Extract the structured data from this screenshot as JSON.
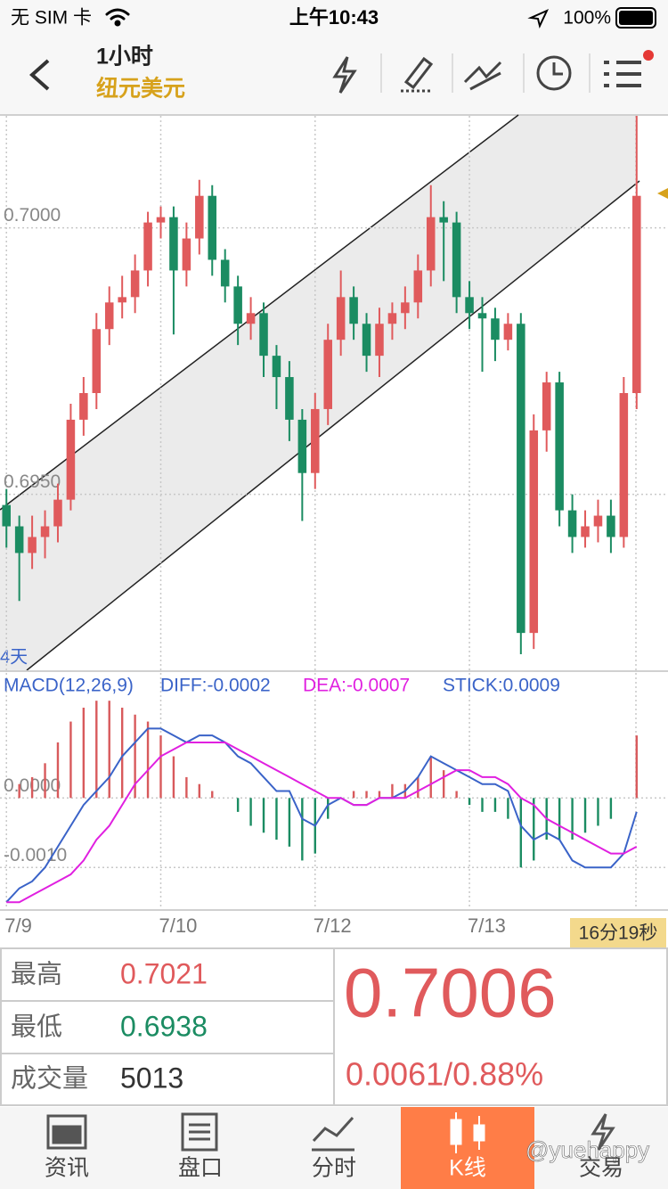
{
  "status_bar": {
    "carrier": "无 SIM 卡",
    "time": "上午10:43",
    "battery": "100%"
  },
  "header": {
    "period": "1小时",
    "symbol": "纽元美元"
  },
  "chart_data": [
    {
      "type": "candlestick",
      "period_label": "4天",
      "timer": "16分19秒",
      "up_color": "#e05a5c",
      "down_color": "#1b8c62",
      "categories": [
        "7/9",
        null,
        null,
        null,
        null,
        null,
        null,
        null,
        null,
        null,
        null,
        null,
        "7/10",
        null,
        null,
        null,
        null,
        null,
        null,
        null,
        null,
        null,
        null,
        null,
        "7/12",
        null,
        null,
        null,
        null,
        null,
        null,
        null,
        null,
        null,
        null,
        null,
        "7/13",
        null,
        null,
        null,
        null,
        null,
        null,
        null,
        null,
        null,
        null,
        null,
        null,
        null
      ],
      "open": [
        0.6948,
        0.6944,
        0.6939,
        0.6942,
        0.6944,
        0.6949,
        0.6964,
        0.6969,
        0.6981,
        0.6986,
        0.6987,
        0.6992,
        0.7001,
        0.7002,
        0.6992,
        0.6998,
        0.7006,
        0.6994,
        0.6989,
        0.6982,
        0.6984,
        0.6976,
        0.6972,
        0.6964,
        0.6954,
        0.6966,
        0.6979,
        0.6987,
        0.6982,
        0.6976,
        0.6982,
        0.6984,
        0.6986,
        0.6992,
        0.7002,
        0.7001,
        0.6987,
        0.6984,
        0.6983,
        0.6979,
        0.6982,
        0.6924,
        0.6962,
        0.6971,
        0.6947,
        0.6942,
        0.6944,
        0.6946,
        0.6942,
        0.6969
      ],
      "high": [
        0.6951,
        0.6946,
        0.6946,
        0.6947,
        0.6952,
        0.6967,
        0.6972,
        0.6984,
        0.6989,
        0.6991,
        0.6995,
        0.7003,
        0.7004,
        0.7004,
        0.7001,
        0.7009,
        0.7008,
        0.6996,
        0.6991,
        0.6987,
        0.6986,
        0.6978,
        0.6975,
        0.6966,
        0.6969,
        0.6982,
        0.6992,
        0.6989,
        0.6984,
        0.6985,
        0.6986,
        0.6989,
        0.6995,
        0.7008,
        0.7005,
        0.7003,
        0.699,
        0.6987,
        0.6985,
        0.6984,
        0.6984,
        0.6965,
        0.6973,
        0.6973,
        0.695,
        0.6947,
        0.6949,
        0.6949,
        0.6972,
        0.7021
      ],
      "low": [
        0.694,
        0.693,
        0.6936,
        0.6938,
        0.6941,
        0.6947,
        0.6961,
        0.6966,
        0.6978,
        0.6983,
        0.6984,
        0.6989,
        0.6998,
        0.698,
        0.6989,
        0.6995,
        0.6991,
        0.6986,
        0.6978,
        0.6979,
        0.6972,
        0.6966,
        0.696,
        0.6945,
        0.6951,
        0.6963,
        0.6976,
        0.6979,
        0.6973,
        0.6972,
        0.6979,
        0.6981,
        0.6983,
        0.6989,
        0.699,
        0.6984,
        0.6981,
        0.6973,
        0.6975,
        0.6977,
        0.692,
        0.6921,
        0.6958,
        0.6944,
        0.6939,
        0.694,
        0.6941,
        0.6939,
        0.694,
        0.6966
      ],
      "close": [
        0.6944,
        0.6939,
        0.6942,
        0.6944,
        0.6949,
        0.6964,
        0.6969,
        0.6981,
        0.6986,
        0.6987,
        0.6992,
        0.7001,
        0.7002,
        0.6992,
        0.6998,
        0.7006,
        0.6994,
        0.6989,
        0.6982,
        0.6984,
        0.6976,
        0.6972,
        0.6964,
        0.6954,
        0.6966,
        0.6979,
        0.6987,
        0.6982,
        0.6976,
        0.6982,
        0.6984,
        0.6986,
        0.6992,
        0.7002,
        0.7001,
        0.6987,
        0.6984,
        0.6983,
        0.6979,
        0.6982,
        0.6924,
        0.6962,
        0.6971,
        0.6947,
        0.6942,
        0.6944,
        0.6946,
        0.6942,
        0.6969,
        0.7006
      ],
      "ylim": [
        0.6917,
        0.7021
      ],
      "yticks": [
        {
          "value": 0.7,
          "label": "0.7000"
        },
        {
          "value": 0.695,
          "label": "0.6950"
        }
      ],
      "grid": true
    },
    {
      "type": "macd",
      "title": "MACD(12,26,9)",
      "title_color": "#3a63c8",
      "ylim": [
        -0.0016,
        0.0018
      ],
      "yticks": [
        {
          "value": 0,
          "label": "0.0000"
        },
        {
          "value": -0.001,
          "label": "-0.0010"
        }
      ],
      "series": [
        {
          "name": "DIFF:-0.0002",
          "color": "#3a63c8",
          "kind": "line",
          "values": [
            -0.0015,
            -0.0013,
            -0.0012,
            -0.001,
            -0.0007,
            -0.0004,
            -0.0001,
            0.0001,
            0.0003,
            0.0006,
            0.0008,
            0.001,
            0.001,
            0.0009,
            0.0008,
            0.0009,
            0.0009,
            0.0008,
            0.0006,
            0.0005,
            0.0003,
            0.0001,
            0.0001,
            -0.0003,
            -0.0004,
            -0.0001,
            0,
            -0.0001,
            -0.0001,
            0,
            0,
            0.0001,
            0.0003,
            0.0006,
            0.0005,
            0.0004,
            0.0003,
            0.0002,
            0.0002,
            0.0001,
            -0.0004,
            -0.0006,
            -0.0005,
            -0.0006,
            -0.0009,
            -0.001,
            -0.001,
            -0.001,
            -0.0008,
            -0.0002
          ]
        },
        {
          "name": "DEA:-0.0007",
          "color": "#e020e0",
          "kind": "line",
          "values": [
            -0.0015,
            -0.0015,
            -0.0014,
            -0.0013,
            -0.0012,
            -0.0011,
            -0.0009,
            -0.0006,
            -0.0004,
            -0.0001,
            0.0002,
            0.0004,
            0.0006,
            0.0007,
            0.0008,
            0.0008,
            0.0008,
            0.0008,
            0.0007,
            0.0006,
            0.0005,
            0.0004,
            0.0003,
            0.0002,
            0.0001,
            0,
            0,
            -0.0001,
            -0.0001,
            0,
            0,
            0,
            0.0001,
            0.0002,
            0.0003,
            0.0004,
            0.0004,
            0.0003,
            0.0003,
            0.0002,
            0,
            -0.0001,
            -0.0003,
            -0.0004,
            -0.0005,
            -0.0006,
            -0.0007,
            -0.0008,
            -0.0008,
            -0.0007
          ]
        },
        {
          "name": "STICK:0.0009",
          "color": "#3a63c8",
          "kind": "bar",
          "up_color": "#d85a5c",
          "down_color": "#1b8c62",
          "values": [
            0,
            0.0002,
            0.0003,
            0.0005,
            0.0008,
            0.0011,
            0.0013,
            0.0014,
            0.0014,
            0.0013,
            0.0012,
            0.0011,
            0.0009,
            0.0006,
            0.0003,
            0.0002,
            0.0001,
            0,
            -0.0002,
            -0.0004,
            -0.0005,
            -0.0006,
            -0.0007,
            -0.0009,
            -0.0008,
            -0.0003,
            0,
            0.0001,
            0.0001,
            0.0001,
            0.0002,
            0.0002,
            0.0003,
            0.0006,
            0.0004,
            0.0001,
            -0.0001,
            -0.0002,
            -0.0002,
            -0.0003,
            -0.001,
            -0.0009,
            -0.0006,
            -0.0006,
            -0.0006,
            -0.0005,
            -0.0004,
            -0.0003,
            0,
            0.0009
          ]
        }
      ]
    }
  ],
  "quote": {
    "high_label": "最高",
    "high": "0.7021",
    "low_label": "最低",
    "low": "0.6938",
    "volume_label": "成交量",
    "volume": "5013",
    "price": "0.7006",
    "change": "0.0061/0.88%"
  },
  "tabs": [
    "资讯",
    "盘口",
    "分时",
    "K线",
    "交易"
  ],
  "active_tab": 3,
  "watermark": "@yuehappy"
}
